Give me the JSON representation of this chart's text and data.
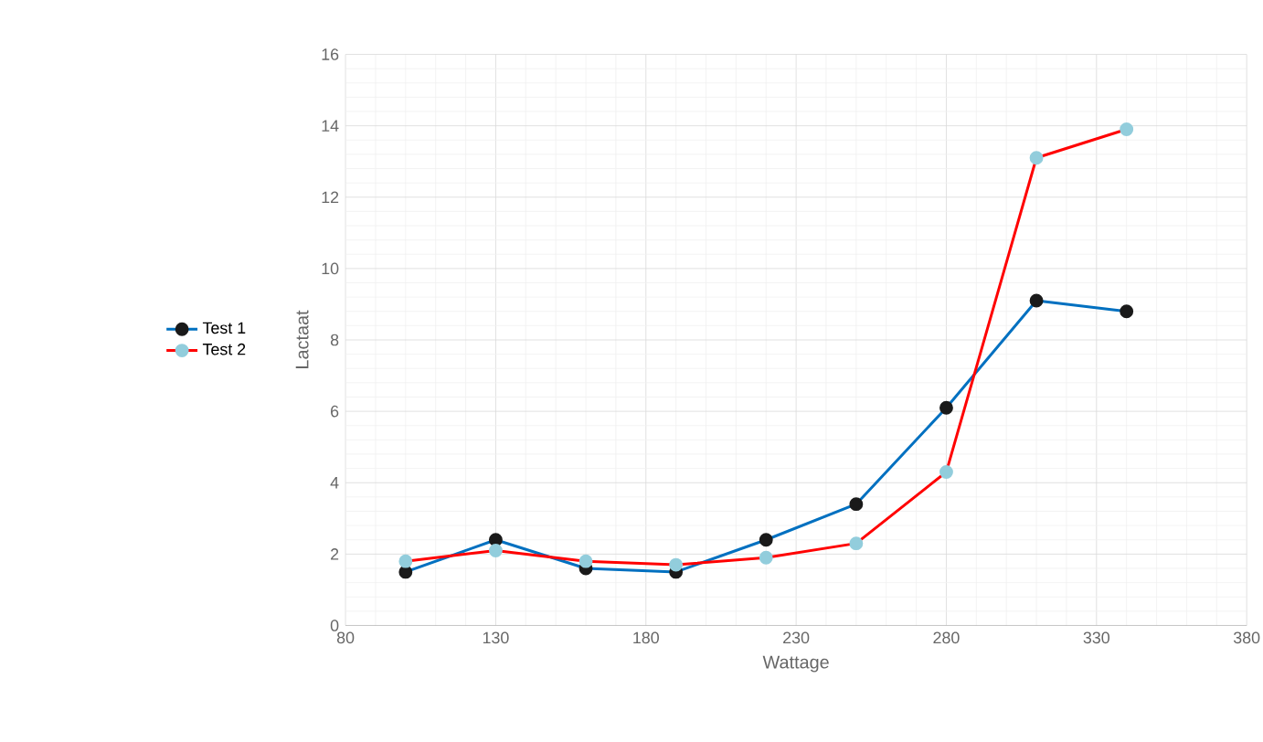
{
  "chart_data": {
    "type": "line",
    "xlabel": "Wattage",
    "ylabel": "Lactaat",
    "x": [
      100,
      130,
      160,
      190,
      220,
      250,
      280,
      310,
      340
    ],
    "series": [
      {
        "name": "Test 1",
        "color": "#0070c0",
        "colors": [
          "#1a1a1a",
          "#1a1a1a",
          "#1a1a1a",
          "#1a1a1a",
          "#1a1a1a",
          "#1a1a1a",
          "#1a1a1a",
          "#1a1a1a",
          "#1a1a1a"
        ],
        "values": [
          1.5,
          2.4,
          1.6,
          1.5,
          2.4,
          3.4,
          6.1,
          9.1,
          8.8
        ]
      },
      {
        "name": "Test 2",
        "color": "#ff0000",
        "colors": [
          "#92cddc",
          "#92cddc",
          "#92cddc",
          "#92cddc",
          "#92cddc",
          "#92cddc",
          "#92cddc",
          "#92cddc",
          "#92cddc"
        ],
        "values": [
          1.8,
          2.1,
          1.8,
          1.7,
          1.9,
          2.3,
          4.3,
          13.1,
          13.9
        ]
      }
    ],
    "xlim": [
      80,
      380
    ],
    "xticks": [
      80,
      130,
      180,
      230,
      280,
      330,
      380
    ],
    "ylim": [
      0,
      16
    ],
    "yticks": [
      0,
      2,
      4,
      6,
      8,
      10,
      12,
      14,
      16
    ],
    "grid": true,
    "legend": "left",
    "marker": "circle",
    "line_style": "solid"
  }
}
